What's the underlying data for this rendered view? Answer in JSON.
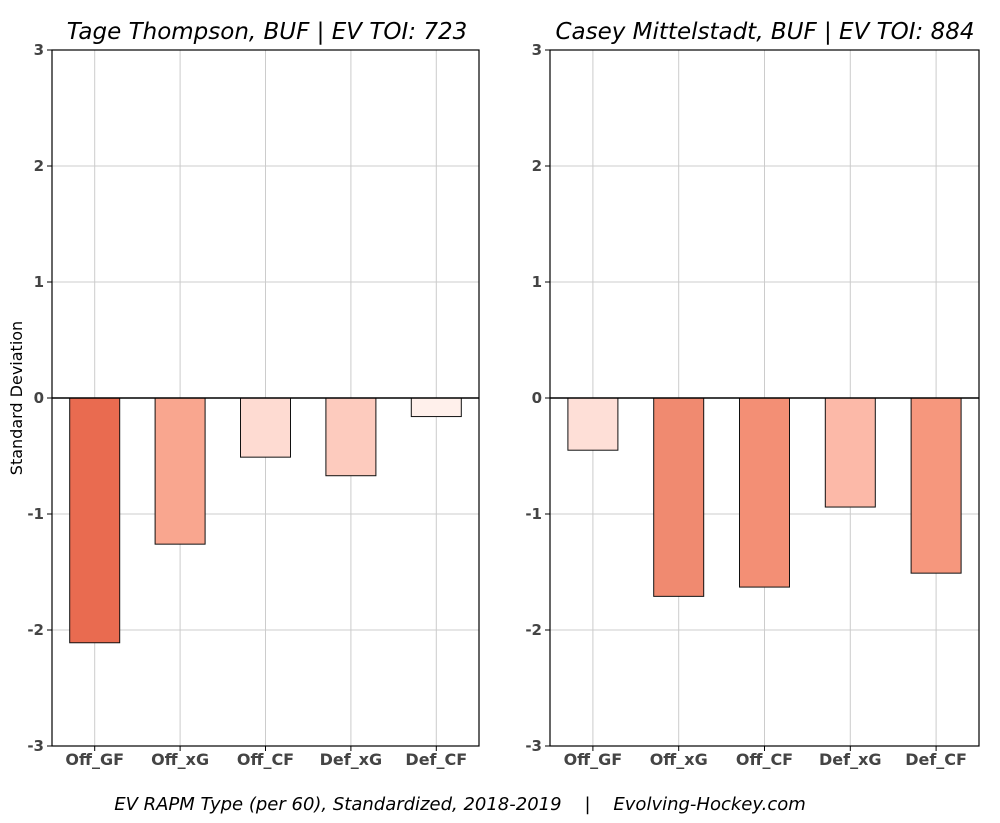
{
  "chart_data": [
    {
      "type": "bar",
      "title": "Tage Thompson, BUF  |  EV TOI: 723",
      "ylabel": "Standard Deviation",
      "xlabel": "",
      "categories": [
        "Off_GF",
        "Off_xG",
        "Off_CF",
        "Def_xG",
        "Def_CF"
      ],
      "values": [
        -2.11,
        -1.26,
        -0.51,
        -0.67,
        -0.16
      ],
      "colors": [
        "#e96b50",
        "#f9a68f",
        "#fedbd2",
        "#fdcbbe",
        "#fff0eb"
      ],
      "ylim": [
        -3,
        3
      ],
      "yticks": [
        3,
        2,
        1,
        0,
        -1,
        -2,
        -3
      ],
      "grid": true
    },
    {
      "type": "bar",
      "title": "Casey Mittelstadt, BUF  |  EV TOI: 884",
      "ylabel": "",
      "xlabel": "",
      "categories": [
        "Off_GF",
        "Off_xG",
        "Off_CF",
        "Def_xG",
        "Def_CF"
      ],
      "values": [
        -0.45,
        -1.71,
        -1.63,
        -0.94,
        -1.51
      ],
      "colors": [
        "#fedfd7",
        "#f08a70",
        "#f38f75",
        "#fcb9a8",
        "#f6977d"
      ],
      "ylim": [
        -3,
        3
      ],
      "yticks": [
        3,
        2,
        1,
        0,
        -1,
        -2,
        -3
      ],
      "grid": true
    }
  ],
  "caption": "EV RAPM Type (per 60), Standardized, 2018-2019    |    Evolving-Hockey.com"
}
